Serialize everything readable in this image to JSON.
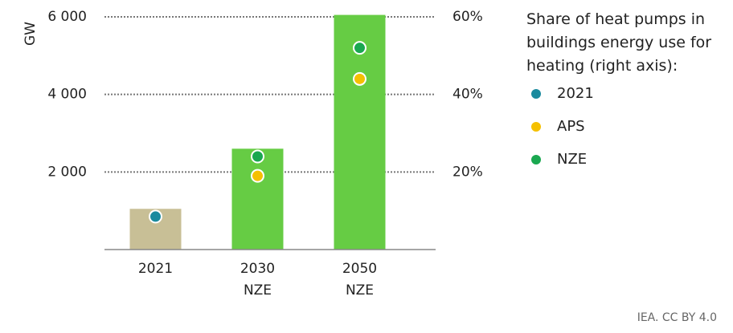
{
  "chart_data": {
    "type": "bar",
    "y_label": "GW",
    "legend_title": "Share of heat pumps in buildings energy use for heating (right axis):",
    "source": "IEA. CC BY 4.0",
    "categories": [
      [
        "2021"
      ],
      [
        "2030",
        "NZE"
      ],
      [
        "2050",
        "NZE"
      ]
    ],
    "values": [
      1050,
      2600,
      6050
    ],
    "bar_colors": [
      "#c8bf96",
      "#66cc44",
      "#66cc44"
    ],
    "ylim": [
      0,
      6000
    ],
    "yticks": [
      {
        "value": 2000,
        "label": "2 000"
      },
      {
        "value": 4000,
        "label": "4 000"
      },
      {
        "value": 6000,
        "label": "6 000"
      }
    ],
    "y2lim": [
      0,
      60
    ],
    "y2ticks": [
      {
        "value": 20,
        "label": "20%"
      },
      {
        "value": 40,
        "label": "40%"
      },
      {
        "value": 60,
        "label": "60%"
      }
    ],
    "grid": true,
    "series": [
      {
        "name": "2021",
        "color": "#1a8a9e",
        "axis": "y2",
        "values": [
          8.5,
          null,
          null
        ]
      },
      {
        "name": "APS",
        "color": "#f5c000",
        "axis": "y2",
        "values": [
          null,
          19,
          44
        ]
      },
      {
        "name": "NZE",
        "color": "#1aa850",
        "axis": "y2",
        "values": [
          null,
          24,
          52
        ]
      }
    ]
  }
}
